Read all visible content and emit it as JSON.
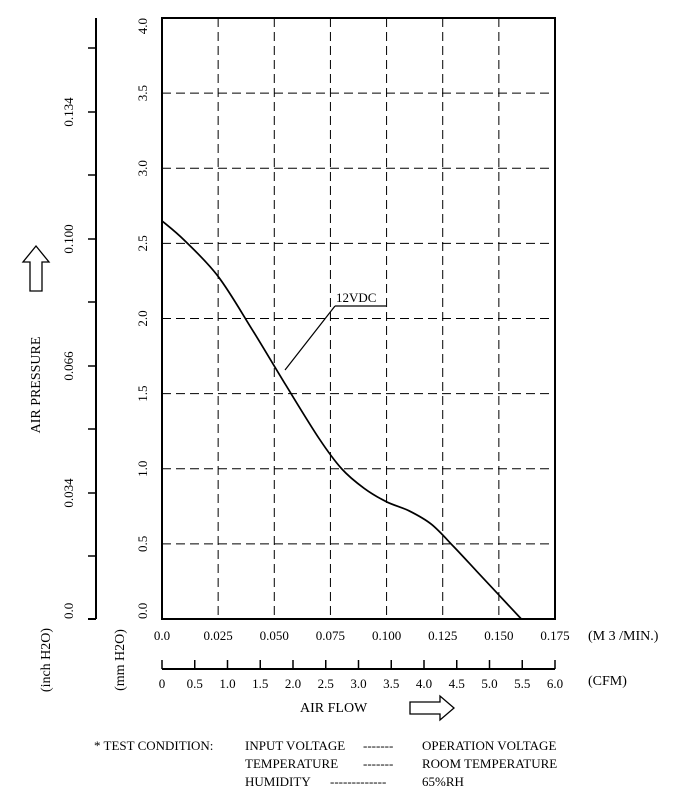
{
  "chart_data": {
    "type": "line",
    "xlim": [
      0,
      0.175
    ],
    "ylim": [
      0,
      4.0
    ],
    "grid": true,
    "x_ticks": [
      "0.0",
      "0.025",
      "0.050",
      "0.075",
      "0.100",
      "0.125",
      "0.150",
      "0.175"
    ],
    "x_unit": "(M 3 /MIN.)",
    "cfm_ticks": [
      "0",
      "0.5",
      "1.0",
      "1.5",
      "2.0",
      "2.5",
      "3.0",
      "3.5",
      "4.0",
      "4.5",
      "5.0",
      "5.5",
      "6.0"
    ],
    "cfm_unit": "(CFM)",
    "xlabel": "AIR FLOW",
    "y_ticks_mm": [
      "0.0",
      "0.5",
      "1.0",
      "1.5",
      "2.0",
      "2.5",
      "3.0",
      "3.5",
      "4.0"
    ],
    "y_unit_mm": "(mm H2O)",
    "y_ticks_inch": [
      "0.0",
      "0.034",
      "0.066",
      "0.100",
      "0.134"
    ],
    "y_unit_inch": "(inch H2O)",
    "ylabel": "AIR PRESSURE",
    "series": [
      {
        "name": "12VDC",
        "x": [
          0.0,
          0.01,
          0.025,
          0.04,
          0.055,
          0.07,
          0.08,
          0.09,
          0.1,
          0.11,
          0.12,
          0.13,
          0.14,
          0.15,
          0.16
        ],
        "y": [
          2.65,
          2.52,
          2.28,
          1.93,
          1.56,
          1.2,
          1.0,
          0.87,
          0.78,
          0.72,
          0.63,
          0.48,
          0.32,
          0.16,
          0.0
        ]
      }
    ]
  },
  "test_condition": {
    "prefix": "* TEST CONDITION:",
    "rows": [
      {
        "label": "INPUT VOLTAGE",
        "dashes": "-------",
        "value": "OPERATION VOLTAGE"
      },
      {
        "label": "TEMPERATURE",
        "dashes": "-------",
        "value": "ROOM TEMPERATURE"
      },
      {
        "label": "HUMIDITY",
        "dashes": "-------------",
        "value": "65%RH"
      }
    ]
  }
}
